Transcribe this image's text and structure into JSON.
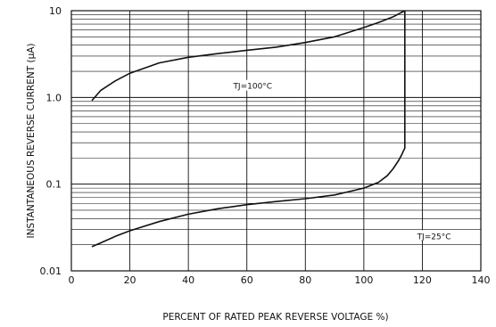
{
  "chart_data": {
    "type": "line",
    "title": "",
    "xlabel": "PERCENT OF RATED PEAK REVERSE VOLTAGE %)",
    "ylabel": "INSTANTANEOUS REVERSE CURRENT  (μA)",
    "xlim": [
      0,
      140
    ],
    "ylim": [
      0.01,
      10
    ],
    "yscale": "log",
    "grid": true,
    "x_ticks": [
      0,
      20,
      40,
      60,
      80,
      100,
      120,
      140
    ],
    "x_tick_labels": [
      "0",
      "20",
      "40",
      "60",
      "80",
      "100",
      "120",
      "140"
    ],
    "y_ticks": [
      0.01,
      0.1,
      1,
      10
    ],
    "y_tick_labels": [
      "0.01",
      "0.1",
      "1.0",
      "10"
    ],
    "series": [
      {
        "name": "TJ=100°C",
        "x": [
          7,
          10,
          15,
          20,
          30,
          40,
          50,
          60,
          70,
          80,
          90,
          100,
          105,
          110,
          114
        ],
        "y": [
          0.92,
          1.2,
          1.55,
          1.9,
          2.5,
          2.9,
          3.2,
          3.5,
          3.8,
          4.3,
          5.0,
          6.4,
          7.3,
          8.5,
          10
        ]
      },
      {
        "name": "TJ=25°C",
        "x": [
          7,
          10,
          15,
          20,
          30,
          40,
          50,
          60,
          70,
          80,
          90,
          100,
          105,
          108,
          110,
          112,
          113,
          113.5,
          114,
          114,
          114
        ],
        "y": [
          0.019,
          0.021,
          0.025,
          0.029,
          0.037,
          0.045,
          0.052,
          0.058,
          0.063,
          0.068,
          0.075,
          0.09,
          0.105,
          0.125,
          0.15,
          0.19,
          0.22,
          0.24,
          0.26,
          1.0,
          10
        ]
      }
    ],
    "annotations": [
      {
        "text": "TJ=100°C",
        "x": 62,
        "y": 1.35
      },
      {
        "text": "TJ=25°C",
        "x": 124,
        "y": 0.025
      }
    ]
  }
}
